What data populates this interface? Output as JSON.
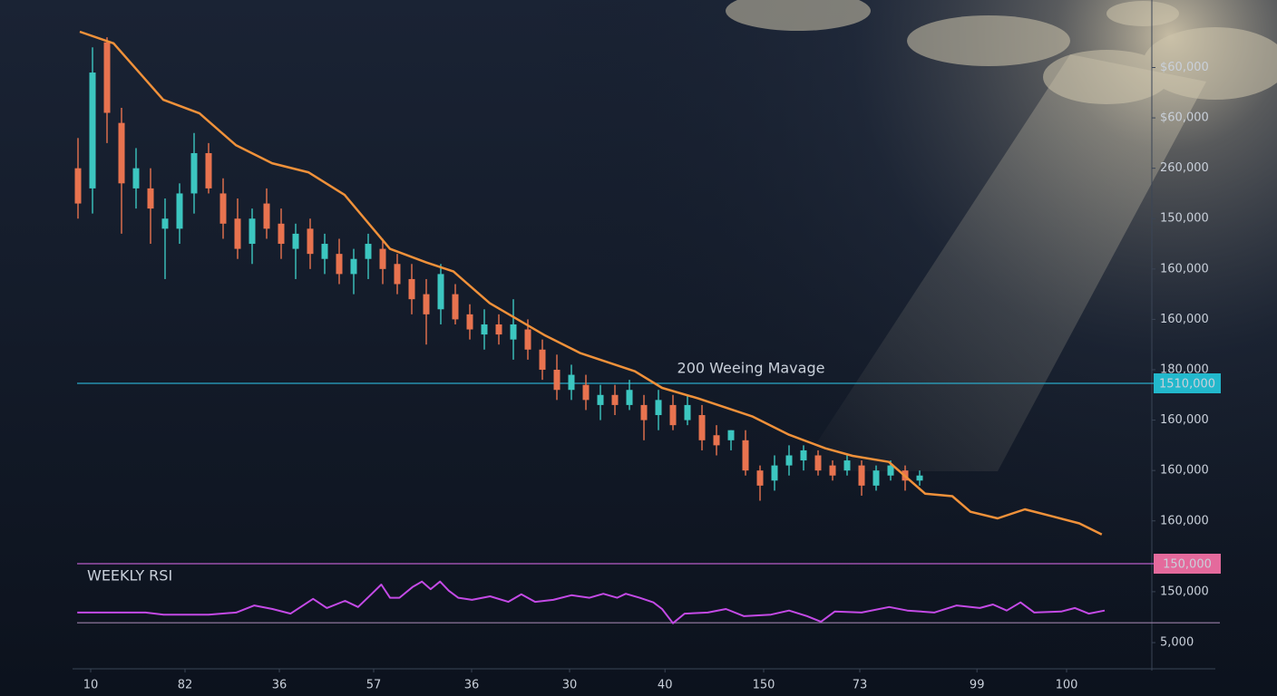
{
  "chart_data": [
    {
      "type": "candlestick",
      "x": [
        2,
        4,
        6,
        8,
        10,
        12,
        14,
        16,
        18,
        20,
        22,
        24,
        26,
        28,
        30,
        32,
        34,
        36,
        38,
        40,
        42,
        44,
        46,
        48,
        50,
        52,
        54,
        56,
        58,
        60,
        62,
        64,
        66,
        68,
        70,
        72,
        74,
        76,
        78,
        80,
        82,
        84,
        86,
        88,
        90,
        92,
        94,
        96,
        98,
        100,
        102,
        104,
        106,
        108,
        110,
        112,
        114,
        116,
        118
      ],
      "open": [
        7.0,
        6.6,
        9.5,
        7.9,
        6.6,
        6.6,
        5.8,
        5.8,
        6.5,
        7.3,
        6.5,
        6.0,
        5.5,
        6.3,
        5.9,
        5.4,
        5.8,
        5.2,
        5.3,
        4.9,
        5.2,
        5.4,
        5.1,
        4.8,
        4.5,
        4.2,
        4.5,
        4.1,
        3.7,
        3.9,
        3.6,
        3.8,
        3.4,
        3.0,
        2.6,
        2.7,
        2.3,
        2.5,
        2.3,
        2.3,
        2.1,
        2.3,
        2.0,
        2.1,
        1.7,
        1.6,
        1.6,
        1.0,
        0.8,
        1.1,
        1.2,
        1.3,
        1.1,
        1.0,
        1.1,
        0.7,
        0.9,
        1.0,
        0.8
      ],
      "high": [
        7.6,
        9.4,
        9.6,
        8.2,
        7.4,
        7.0,
        6.4,
        6.7,
        7.7,
        7.5,
        6.8,
        6.4,
        6.2,
        6.6,
        6.2,
        5.9,
        6.0,
        5.7,
        5.6,
        5.4,
        5.7,
        5.6,
        5.3,
        5.1,
        4.8,
        5.1,
        4.7,
        4.3,
        4.2,
        4.1,
        4.4,
        4.0,
        3.6,
        3.3,
        3.1,
        2.9,
        2.7,
        2.7,
        2.8,
        2.5,
        2.6,
        2.5,
        2.5,
        2.3,
        1.9,
        1.8,
        1.8,
        1.1,
        1.3,
        1.5,
        1.5,
        1.4,
        1.2,
        1.3,
        1.2,
        1.1,
        1.2,
        1.1,
        1.0
      ],
      "low": [
        6.0,
        6.1,
        7.5,
        5.7,
        6.2,
        5.5,
        4.8,
        5.5,
        6.1,
        6.5,
        5.6,
        5.2,
        5.1,
        5.6,
        5.2,
        4.8,
        5.0,
        4.9,
        4.7,
        4.5,
        4.8,
        4.7,
        4.5,
        4.1,
        3.5,
        3.9,
        3.9,
        3.6,
        3.4,
        3.5,
        3.2,
        3.2,
        2.8,
        2.4,
        2.4,
        2.2,
        2.0,
        2.1,
        2.2,
        1.6,
        1.8,
        1.8,
        1.9,
        1.4,
        1.3,
        1.4,
        0.9,
        0.4,
        0.6,
        0.9,
        1.0,
        0.9,
        0.8,
        0.9,
        0.5,
        0.6,
        0.8,
        0.6,
        0.7
      ],
      "close": [
        6.3,
        8.9,
        8.1,
        6.7,
        7.0,
        6.2,
        6.0,
        6.5,
        7.3,
        6.6,
        5.9,
        5.4,
        6.0,
        5.8,
        5.5,
        5.7,
        5.3,
        5.5,
        4.9,
        5.2,
        5.5,
        5.0,
        4.7,
        4.4,
        4.1,
        4.9,
        4.0,
        3.8,
        3.9,
        3.7,
        3.9,
        3.4,
        3.0,
        2.6,
        2.9,
        2.4,
        2.5,
        2.3,
        2.6,
        2.0,
        2.4,
        1.9,
        2.3,
        1.6,
        1.5,
        1.8,
        1.0,
        0.7,
        1.1,
        1.3,
        1.4,
        1.0,
        0.9,
        1.2,
        0.7,
        1.0,
        1.1,
        0.8,
        0.9
      ],
      "up_color": "#3cc6c0",
      "down_color": "#e8734f",
      "series": [
        {
          "type": "line",
          "color": "#f0913a",
          "x": [
            2.25,
            6.9,
            13.75,
            18.75,
            23.75,
            28.75,
            33.75,
            38.75,
            45,
            50,
            53.75,
            58.75,
            66.25,
            71.25,
            78.75,
            82.5,
            87.5,
            95,
            100,
            105,
            108.75,
            113.75,
            118.75,
            122.5,
            125,
            128.75,
            132.5,
            136.25,
            140,
            143.1
          ],
          "values": [
            9.71,
            9.48,
            8.36,
            8.09,
            7.46,
            7.1,
            6.92,
            6.47,
            5.4,
            5.13,
            4.95,
            4.32,
            3.69,
            3.33,
            2.97,
            2.64,
            2.43,
            2.07,
            1.71,
            1.44,
            1.29,
            1.17,
            0.54,
            0.49,
            0.18,
            0.05,
            0.23,
            0.09,
            -0.05,
            -0.27
          ]
        }
      ],
      "reference_lines": [
        {
          "value": 2.73,
          "name": "200 Weeing Mavage",
          "label": "1510,000",
          "color": "#2aa9c8"
        },
        {
          "value": -0.85,
          "label": "150,000",
          "color": "#b85cc8"
        }
      ],
      "xlim": [
        0,
        150
      ],
      "ylim": [
        -0.85,
        10.34
      ],
      "yticks": [
        {
          "value": 9,
          "label": "$60,000"
        },
        {
          "value": 8,
          "label": "$60,000"
        },
        {
          "value": 7,
          "label": "260,000"
        },
        {
          "value": 6,
          "label": "150,000"
        },
        {
          "value": 5,
          "label": "160,000"
        },
        {
          "value": 4,
          "label": "160,000"
        },
        {
          "value": 3,
          "label": "180,000"
        },
        {
          "value": 2,
          "label": "160,000"
        },
        {
          "value": 1,
          "label": "160,000"
        },
        {
          "value": 0,
          "label": "160,000"
        }
      ]
    },
    {
      "type": "line",
      "title": "WEEKLY RSI",
      "color": "#c44ae6",
      "x": [
        1.9,
        11.3,
        13.8,
        20,
        23.8,
        26.3,
        28.8,
        31.3,
        34.4,
        36.3,
        38.8,
        40.6,
        42.5,
        43.8,
        45,
        46.3,
        48.1,
        49.4,
        50.6,
        51.9,
        53.1,
        54.4,
        56.3,
        58.8,
        61.3,
        63.1,
        65,
        67.5,
        70,
        72.5,
        74.4,
        76.3,
        77.5,
        79.4,
        81.3,
        82.5,
        84,
        85.6,
        88.8,
        91.3,
        93.8,
        97.5,
        100,
        102.5,
        104.4,
        106.3,
        110,
        113.8,
        116.3,
        120,
        123.1,
        126.3,
        128.1,
        130,
        131.9,
        133.8,
        137.5,
        139.4,
        141.3,
        143.5
      ],
      "values": [
        0.59,
        0.59,
        0.55,
        0.55,
        0.59,
        0.73,
        0.66,
        0.57,
        0.86,
        0.68,
        0.82,
        0.7,
        0.96,
        1.14,
        0.88,
        0.88,
        1.09,
        1.2,
        1.05,
        1.2,
        1.02,
        0.88,
        0.84,
        0.91,
        0.8,
        0.95,
        0.8,
        0.84,
        0.93,
        0.88,
        0.96,
        0.88,
        0.96,
        0.88,
        0.79,
        0.66,
        0.38,
        0.57,
        0.59,
        0.66,
        0.52,
        0.55,
        0.63,
        0.52,
        0.41,
        0.61,
        0.59,
        0.7,
        0.63,
        0.59,
        0.73,
        0.68,
        0.75,
        0.63,
        0.79,
        0.59,
        0.61,
        0.68,
        0.57,
        0.63
      ],
      "reference_lines": [
        {
          "value": 0.39,
          "color": "#9a7fa8"
        }
      ],
      "xlim": [
        0,
        150
      ],
      "ylim": [
        -0.55,
        1.55
      ],
      "yticks": [
        {
          "value": 1,
          "label": "150,000"
        },
        {
          "value": 0,
          "label": "5,000"
        }
      ],
      "xticks": [
        {
          "value": 3.75,
          "label": "10"
        },
        {
          "value": 16.75,
          "label": "82"
        },
        {
          "value": 29.75,
          "label": "36"
        },
        {
          "value": 42.75,
          "label": "57"
        },
        {
          "value": 56.25,
          "label": "36"
        },
        {
          "value": 69.75,
          "label": "30"
        },
        {
          "value": 82.9,
          "label": "40"
        },
        {
          "value": 96.5,
          "label": "150"
        },
        {
          "value": 109.75,
          "label": "73"
        },
        {
          "value": 125.9,
          "label": "99"
        },
        {
          "value": 138.25,
          "label": "100"
        }
      ]
    }
  ]
}
